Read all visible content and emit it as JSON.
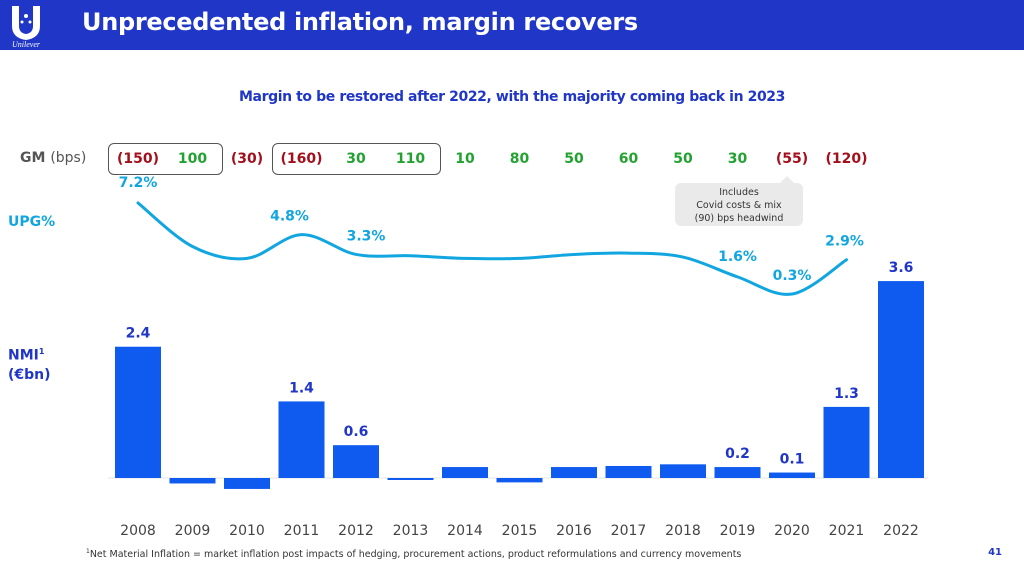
{
  "header": {
    "title": "Unprecedented inflation, margin recovers",
    "logo_text": "Unilever",
    "background_color": "#1f36c7"
  },
  "subtitle": "Margin to be restored after 2022, with the majority coming back in 2023",
  "labels": {
    "gm": "GM",
    "gm_unit": "(bps)",
    "upg": "UPG%",
    "nmi": "NMI",
    "nmi_sup": "1",
    "nmi_unit": "(€bn)"
  },
  "callout": {
    "line1": "Includes",
    "line2": "Covid costs & mix",
    "line3": "(90) bps headwind"
  },
  "footnote": {
    "sup": "1",
    "text": "Net Material Inflation = market inflation post impacts of hedging, procurement actions, product reformulations and currency movements"
  },
  "page_number": "41",
  "chart_data": {
    "type": "bar",
    "categories": [
      "2008",
      "2009",
      "2010",
      "2011",
      "2012",
      "2013",
      "2014",
      "2015",
      "2016",
      "2017",
      "2018",
      "2019",
      "2020",
      "2021",
      "2022"
    ],
    "gm_bps": {
      "values": [
        -150,
        100,
        -30,
        -160,
        30,
        110,
        10,
        80,
        50,
        60,
        50,
        30,
        -55,
        -120
      ],
      "labels": [
        "(150)",
        "100",
        "(30)",
        "(160)",
        "30",
        "110",
        "10",
        "80",
        "50",
        "60",
        "50",
        "30",
        "(55)",
        "(120)"
      ],
      "boxed_groups": [
        [
          "2008",
          "2009"
        ],
        [
          "2011",
          "2013"
        ]
      ],
      "negative_color": "#a3101c",
      "positive_color": "#22a230"
    },
    "upg": {
      "x": [
        "2008",
        "2009",
        "2010",
        "2011",
        "2012",
        "2013",
        "2014",
        "2015",
        "2016",
        "2017",
        "2018",
        "2019",
        "2020",
        "2021"
      ],
      "values": [
        7.2,
        3.9,
        3.0,
        4.8,
        3.3,
        3.2,
        3.0,
        3.0,
        3.3,
        3.4,
        3.1,
        1.6,
        0.3,
        2.9
      ],
      "labels": [
        "7.2%",
        "",
        "",
        "4.8%",
        "3.3%",
        "",
        "",
        "",
        "",
        "",
        "",
        "1.6%",
        "0.3%",
        "2.9%"
      ],
      "color": "#12a6e0"
    },
    "nmi": {
      "values": [
        2.4,
        -0.1,
        -0.2,
        1.4,
        0.6,
        -0.02,
        0.2,
        -0.08,
        0.2,
        0.22,
        0.25,
        0.2,
        0.1,
        1.3,
        3.6
      ],
      "labels": [
        "2.4",
        "",
        "",
        "1.4",
        "0.6",
        "",
        "",
        "",
        "",
        "",
        "",
        "0.2",
        "0.1",
        "1.3",
        "3.6"
      ],
      "color": "#0f5bf0"
    }
  }
}
